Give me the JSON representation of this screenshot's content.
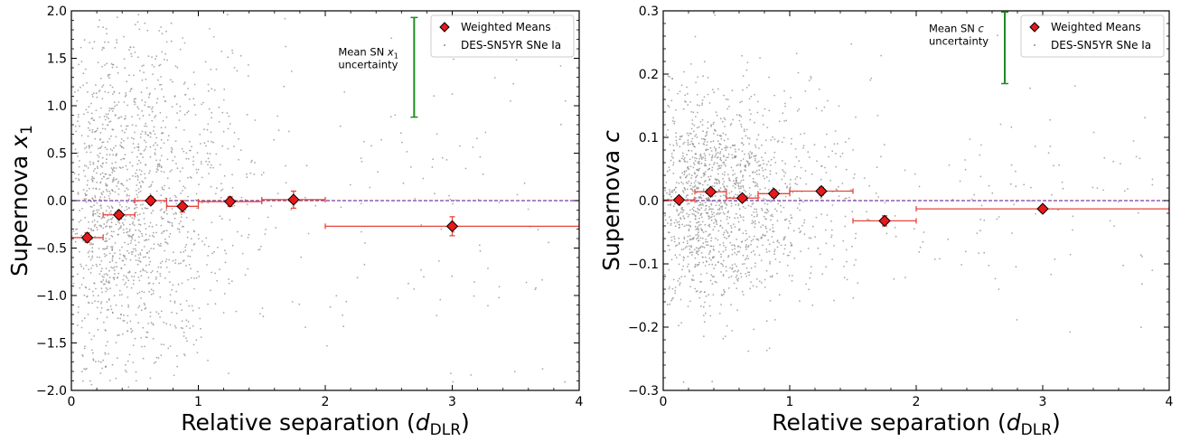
{
  "chart_data": [
    {
      "type": "scatter",
      "xlabel_main": "Relative separation (",
      "xlabel_sym": "d",
      "xlabel_sub": "DLR",
      "xlabel_end": ")",
      "ylabel_main": "Supernova ",
      "ylabel_sym": "x",
      "ylabel_sub": "1",
      "xlim": [
        0,
        4
      ],
      "ylim": [
        -2.0,
        2.0
      ],
      "xticks": [
        0,
        1,
        2,
        3,
        4
      ],
      "xtick_labels": [
        "0",
        "1",
        "2",
        "3",
        "4"
      ],
      "yticks": [
        -2.0,
        -1.5,
        -1.0,
        -0.5,
        0.0,
        0.5,
        1.0,
        1.5,
        2.0
      ],
      "ytick_labels": [
        "−2.0",
        "−1.5",
        "−1.0",
        "−0.5",
        "0.0",
        "0.5",
        "1.0",
        "1.5",
        "2.0"
      ],
      "reference_line_y": 0,
      "weighted_means": [
        {
          "x": 0.125,
          "xerr": 0.125,
          "y": -0.39,
          "yerr": 0.05
        },
        {
          "x": 0.375,
          "xerr": 0.125,
          "y": -0.15,
          "yerr": 0.04
        },
        {
          "x": 0.625,
          "xerr": 0.125,
          "y": 0.0,
          "yerr": 0.04
        },
        {
          "x": 0.875,
          "xerr": 0.125,
          "y": -0.06,
          "yerr": 0.06
        },
        {
          "x": 1.25,
          "xerr": 0.25,
          "y": -0.01,
          "yerr": 0.05
        },
        {
          "x": 1.75,
          "xerr": 0.25,
          "y": 0.01,
          "yerr": 0.09
        },
        {
          "x": 3.0,
          "xerr": 1.0,
          "y": -0.27,
          "yerr": 0.1
        }
      ],
      "uncertainty_bar": {
        "x": 2.7,
        "y_low": 0.88,
        "y_high": 1.93,
        "label_line1": "Mean SN ",
        "label_sym": "x",
        "label_sub": "1",
        "label_line2": "uncertainty"
      },
      "legend": {
        "placement": "top-right",
        "entries": [
          "Weighted Means",
          "DES-SN5YR SNe Ia"
        ]
      },
      "scatter": {
        "n": 1600,
        "seed": 11,
        "x_scale": 0.62,
        "y_sd": 0.95,
        "y_max": 2.0
      }
    },
    {
      "type": "scatter",
      "xlabel_main": "Relative separation (",
      "xlabel_sym": "d",
      "xlabel_sub": "DLR",
      "xlabel_end": ")",
      "ylabel_main": "Supernova ",
      "ylabel_sym": "c",
      "ylabel_sub": "",
      "xlim": [
        0,
        4
      ],
      "ylim": [
        -0.3,
        0.3
      ],
      "xticks": [
        0,
        1,
        2,
        3,
        4
      ],
      "xtick_labels": [
        "0",
        "1",
        "2",
        "3",
        "4"
      ],
      "yticks": [
        -0.3,
        -0.2,
        -0.1,
        0.0,
        0.1,
        0.2,
        0.3
      ],
      "ytick_labels": [
        "−0.3",
        "−0.2",
        "−0.1",
        "0.0",
        "0.1",
        "0.2",
        "0.3"
      ],
      "reference_line_y": 0,
      "weighted_means": [
        {
          "x": 0.125,
          "xerr": 0.125,
          "y": 0.001,
          "yerr": 0.004
        },
        {
          "x": 0.375,
          "xerr": 0.125,
          "y": 0.014,
          "yerr": 0.004
        },
        {
          "x": 0.625,
          "xerr": 0.125,
          "y": 0.004,
          "yerr": 0.004
        },
        {
          "x": 0.875,
          "xerr": 0.125,
          "y": 0.011,
          "yerr": 0.006
        },
        {
          "x": 1.25,
          "xerr": 0.25,
          "y": 0.015,
          "yerr": 0.006
        },
        {
          "x": 1.75,
          "xerr": 0.25,
          "y": -0.032,
          "yerr": 0.008
        },
        {
          "x": 3.0,
          "xerr": 1.0,
          "y": -0.013,
          "yerr": 0.005
        }
      ],
      "uncertainty_bar": {
        "x": 2.7,
        "y_low": 0.185,
        "y_high": 0.298,
        "label_line1": "Mean SN ",
        "label_sym": "c",
        "label_sub": "",
        "label_line2": "uncertainty"
      },
      "legend": {
        "placement": "top-right",
        "entries": [
          "Weighted Means",
          "DES-SN5YR SNe Ia"
        ]
      },
      "scatter": {
        "n": 1600,
        "seed": 29,
        "x_scale": 0.62,
        "y_sd": 0.085,
        "y_max": 0.3
      }
    }
  ],
  "colors": {
    "scatter": "#8c8c8c",
    "marker_fill": "#e41a1c",
    "marker_edge": "#000000",
    "errorbar": "#e8453c",
    "uncertainty": "#228b22",
    "reference_line": "#7b3f9e",
    "legend_border": "#cccccc"
  }
}
